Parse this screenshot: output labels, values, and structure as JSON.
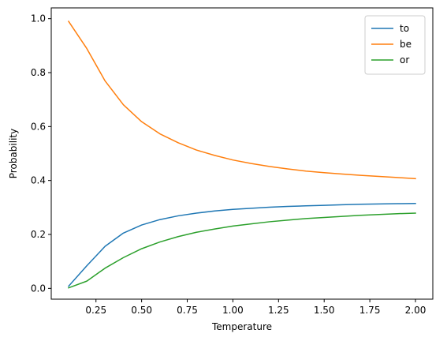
{
  "chart_data": {
    "type": "line",
    "xlabel": "Temperature",
    "ylabel": "Probability",
    "xlim": [
      0.005,
      2.095
    ],
    "ylim": [
      -0.04,
      1.04
    ],
    "xticks": [
      0.25,
      0.5,
      0.75,
      1.0,
      1.25,
      1.5,
      1.75,
      2.0
    ],
    "xtick_labels": [
      "0.25",
      "0.50",
      "0.75",
      "1.00",
      "1.25",
      "1.50",
      "1.75",
      "2.00"
    ],
    "yticks": [
      0.0,
      0.2,
      0.4,
      0.6,
      0.8,
      1.0
    ],
    "ytick_labels": [
      "0.0",
      "0.2",
      "0.4",
      "0.6",
      "0.8",
      "1.0"
    ],
    "grid": false,
    "legend_position": "top-right",
    "x": [
      0.1,
      0.2,
      0.3,
      0.4,
      0.5,
      0.6,
      0.7,
      0.8,
      0.9,
      1.0,
      1.1,
      1.2,
      1.3,
      1.4,
      1.5,
      1.6,
      1.7,
      1.8,
      1.9,
      2.0
    ],
    "series": [
      {
        "name": "to",
        "color": "#1f77b4",
        "values": [
          0.008,
          0.084,
          0.156,
          0.205,
          0.235,
          0.255,
          0.269,
          0.279,
          0.287,
          0.293,
          0.297,
          0.301,
          0.304,
          0.306,
          0.308,
          0.31,
          0.312,
          0.313,
          0.314,
          0.315
        ]
      },
      {
        "name": "be",
        "color": "#ff7f0e",
        "values": [
          0.99,
          0.889,
          0.769,
          0.681,
          0.618,
          0.573,
          0.54,
          0.513,
          0.493,
          0.476,
          0.463,
          0.452,
          0.443,
          0.435,
          0.429,
          0.424,
          0.419,
          0.415,
          0.411,
          0.407
        ]
      },
      {
        "name": "or",
        "color": "#2ca02c",
        "values": [
          0.002,
          0.027,
          0.075,
          0.114,
          0.147,
          0.172,
          0.192,
          0.208,
          0.22,
          0.231,
          0.239,
          0.247,
          0.253,
          0.259,
          0.263,
          0.267,
          0.271,
          0.274,
          0.277,
          0.279
        ]
      }
    ]
  }
}
